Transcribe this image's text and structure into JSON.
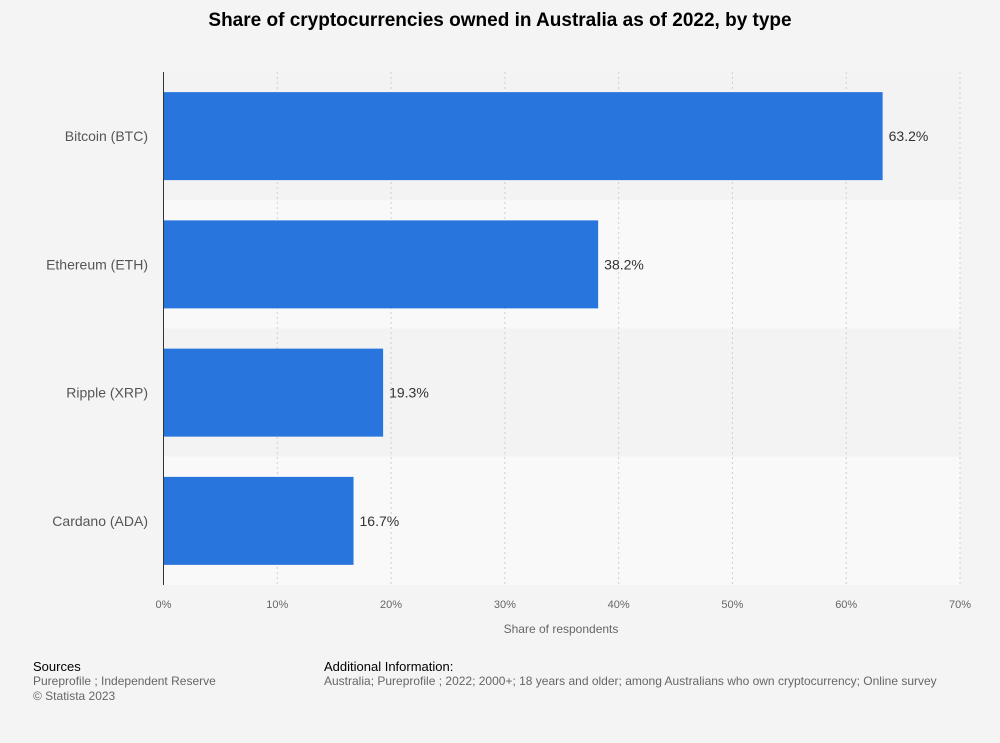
{
  "chart_data": {
    "type": "bar",
    "orientation": "horizontal",
    "title": "Share of cryptocurrencies owned in Australia as of 2022, by type",
    "categories": [
      "Bitcoin (BTC)",
      "Ethereum (ETH)",
      "Ripple (XRP)",
      "Cardano (ADA)"
    ],
    "values": [
      63.2,
      38.2,
      19.3,
      16.7
    ],
    "value_labels": [
      "63.2%",
      "38.2%",
      "19.3%",
      "16.7%"
    ],
    "xlabel": "Share of respondents",
    "ylabel": "",
    "xlim": [
      0,
      70
    ],
    "xticks": [
      0,
      10,
      20,
      30,
      40,
      50,
      60,
      70
    ],
    "xtick_labels": [
      "0%",
      "10%",
      "20%",
      "30%",
      "40%",
      "50%",
      "60%",
      "70%"
    ],
    "grid": true,
    "bar_color": "#2876dd"
  },
  "footer": {
    "sources_heading": "Sources",
    "sources_text": "Pureprofile ; Independent Reserve",
    "copyright": "© Statista 2023",
    "additional_heading": "Additional Information:",
    "additional_text": "Australia; Pureprofile ; 2022; 2000+; 18 years and older; among Australians who own cryptocurrency; Online survey"
  }
}
